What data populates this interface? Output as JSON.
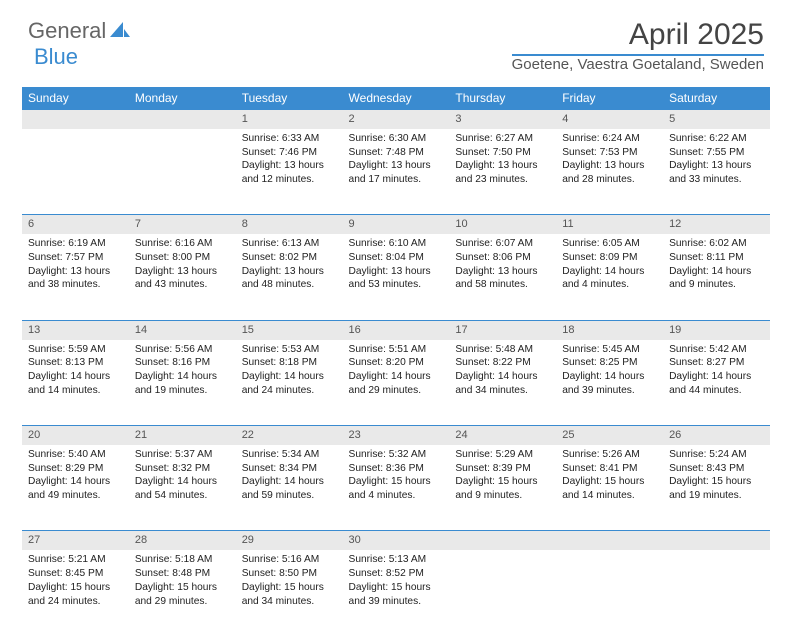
{
  "logo": {
    "part1": "General",
    "part2": "Blue"
  },
  "title": "April 2025",
  "location": "Goetene, Vaestra Goetaland, Sweden",
  "colors": {
    "accent": "#3a8bd0",
    "header_bg": "#3a8bd0",
    "header_text": "#ffffff",
    "daynum_bg": "#e9e9e9",
    "text": "#222222",
    "bg": "#ffffff"
  },
  "layout": {
    "cols": 7,
    "rows": 5,
    "cell_font_pt": 10.2,
    "header_font_pt": 12
  },
  "dow": [
    "Sunday",
    "Monday",
    "Tuesday",
    "Wednesday",
    "Thursday",
    "Friday",
    "Saturday"
  ],
  "weeks": [
    [
      null,
      null,
      {
        "n": "1",
        "sr": "Sunrise: 6:33 AM",
        "ss": "Sunset: 7:46 PM",
        "dl": "Daylight: 13 hours and 12 minutes."
      },
      {
        "n": "2",
        "sr": "Sunrise: 6:30 AM",
        "ss": "Sunset: 7:48 PM",
        "dl": "Daylight: 13 hours and 17 minutes."
      },
      {
        "n": "3",
        "sr": "Sunrise: 6:27 AM",
        "ss": "Sunset: 7:50 PM",
        "dl": "Daylight: 13 hours and 23 minutes."
      },
      {
        "n": "4",
        "sr": "Sunrise: 6:24 AM",
        "ss": "Sunset: 7:53 PM",
        "dl": "Daylight: 13 hours and 28 minutes."
      },
      {
        "n": "5",
        "sr": "Sunrise: 6:22 AM",
        "ss": "Sunset: 7:55 PM",
        "dl": "Daylight: 13 hours and 33 minutes."
      }
    ],
    [
      {
        "n": "6",
        "sr": "Sunrise: 6:19 AM",
        "ss": "Sunset: 7:57 PM",
        "dl": "Daylight: 13 hours and 38 minutes."
      },
      {
        "n": "7",
        "sr": "Sunrise: 6:16 AM",
        "ss": "Sunset: 8:00 PM",
        "dl": "Daylight: 13 hours and 43 minutes."
      },
      {
        "n": "8",
        "sr": "Sunrise: 6:13 AM",
        "ss": "Sunset: 8:02 PM",
        "dl": "Daylight: 13 hours and 48 minutes."
      },
      {
        "n": "9",
        "sr": "Sunrise: 6:10 AM",
        "ss": "Sunset: 8:04 PM",
        "dl": "Daylight: 13 hours and 53 minutes."
      },
      {
        "n": "10",
        "sr": "Sunrise: 6:07 AM",
        "ss": "Sunset: 8:06 PM",
        "dl": "Daylight: 13 hours and 58 minutes."
      },
      {
        "n": "11",
        "sr": "Sunrise: 6:05 AM",
        "ss": "Sunset: 8:09 PM",
        "dl": "Daylight: 14 hours and 4 minutes."
      },
      {
        "n": "12",
        "sr": "Sunrise: 6:02 AM",
        "ss": "Sunset: 8:11 PM",
        "dl": "Daylight: 14 hours and 9 minutes."
      }
    ],
    [
      {
        "n": "13",
        "sr": "Sunrise: 5:59 AM",
        "ss": "Sunset: 8:13 PM",
        "dl": "Daylight: 14 hours and 14 minutes."
      },
      {
        "n": "14",
        "sr": "Sunrise: 5:56 AM",
        "ss": "Sunset: 8:16 PM",
        "dl": "Daylight: 14 hours and 19 minutes."
      },
      {
        "n": "15",
        "sr": "Sunrise: 5:53 AM",
        "ss": "Sunset: 8:18 PM",
        "dl": "Daylight: 14 hours and 24 minutes."
      },
      {
        "n": "16",
        "sr": "Sunrise: 5:51 AM",
        "ss": "Sunset: 8:20 PM",
        "dl": "Daylight: 14 hours and 29 minutes."
      },
      {
        "n": "17",
        "sr": "Sunrise: 5:48 AM",
        "ss": "Sunset: 8:22 PM",
        "dl": "Daylight: 14 hours and 34 minutes."
      },
      {
        "n": "18",
        "sr": "Sunrise: 5:45 AM",
        "ss": "Sunset: 8:25 PM",
        "dl": "Daylight: 14 hours and 39 minutes."
      },
      {
        "n": "19",
        "sr": "Sunrise: 5:42 AM",
        "ss": "Sunset: 8:27 PM",
        "dl": "Daylight: 14 hours and 44 minutes."
      }
    ],
    [
      {
        "n": "20",
        "sr": "Sunrise: 5:40 AM",
        "ss": "Sunset: 8:29 PM",
        "dl": "Daylight: 14 hours and 49 minutes."
      },
      {
        "n": "21",
        "sr": "Sunrise: 5:37 AM",
        "ss": "Sunset: 8:32 PM",
        "dl": "Daylight: 14 hours and 54 minutes."
      },
      {
        "n": "22",
        "sr": "Sunrise: 5:34 AM",
        "ss": "Sunset: 8:34 PM",
        "dl": "Daylight: 14 hours and 59 minutes."
      },
      {
        "n": "23",
        "sr": "Sunrise: 5:32 AM",
        "ss": "Sunset: 8:36 PM",
        "dl": "Daylight: 15 hours and 4 minutes."
      },
      {
        "n": "24",
        "sr": "Sunrise: 5:29 AM",
        "ss": "Sunset: 8:39 PM",
        "dl": "Daylight: 15 hours and 9 minutes."
      },
      {
        "n": "25",
        "sr": "Sunrise: 5:26 AM",
        "ss": "Sunset: 8:41 PM",
        "dl": "Daylight: 15 hours and 14 minutes."
      },
      {
        "n": "26",
        "sr": "Sunrise: 5:24 AM",
        "ss": "Sunset: 8:43 PM",
        "dl": "Daylight: 15 hours and 19 minutes."
      }
    ],
    [
      {
        "n": "27",
        "sr": "Sunrise: 5:21 AM",
        "ss": "Sunset: 8:45 PM",
        "dl": "Daylight: 15 hours and 24 minutes."
      },
      {
        "n": "28",
        "sr": "Sunrise: 5:18 AM",
        "ss": "Sunset: 8:48 PM",
        "dl": "Daylight: 15 hours and 29 minutes."
      },
      {
        "n": "29",
        "sr": "Sunrise: 5:16 AM",
        "ss": "Sunset: 8:50 PM",
        "dl": "Daylight: 15 hours and 34 minutes."
      },
      {
        "n": "30",
        "sr": "Sunrise: 5:13 AM",
        "ss": "Sunset: 8:52 PM",
        "dl": "Daylight: 15 hours and 39 minutes."
      },
      null,
      null,
      null
    ]
  ]
}
